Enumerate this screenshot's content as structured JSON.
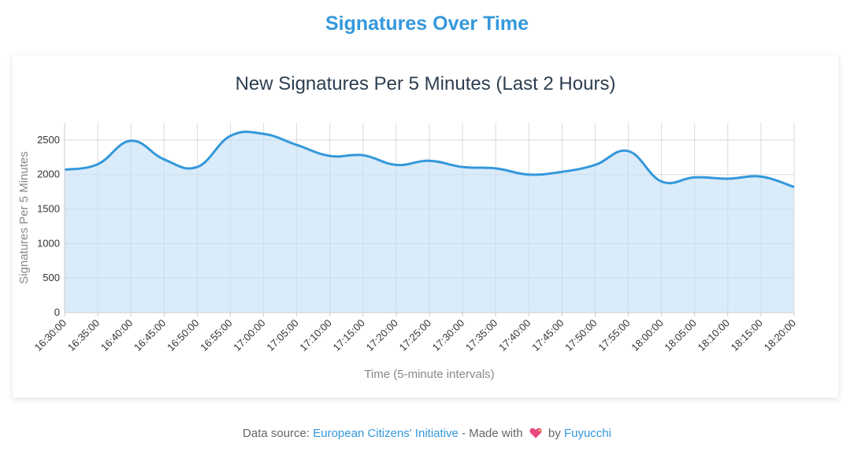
{
  "page": {
    "title": "Signatures Over Time"
  },
  "footer": {
    "prefix": "Data source:",
    "source_link": "European Citizens' Initiative",
    "middle": "- Made with",
    "heart_icon": "heart-icon",
    "by": "by",
    "author_link": "Fuyucchi"
  },
  "chart_data": {
    "type": "area",
    "title": "New Signatures Per 5 Minutes (Last 2 Hours)",
    "xlabel": "Time (5-minute intervals)",
    "ylabel": "Signatures Per 5 Minutes",
    "ylim": [
      0,
      2750
    ],
    "yticks": [
      0,
      500,
      1000,
      1500,
      2000,
      2500
    ],
    "grid": true,
    "line_color": "#3498db",
    "fill_color": "#d6e9f8",
    "categories": [
      "16:30:00",
      "16:35:00",
      "16:40:00",
      "16:45:00",
      "16:50:00",
      "16:55:00",
      "17:00:00",
      "17:05:00",
      "17:10:00",
      "17:15:00",
      "17:20:00",
      "17:25:00",
      "17:30:00",
      "17:35:00",
      "17:40:00",
      "17:45:00",
      "17:50:00",
      "17:55:00",
      "18:00:00",
      "18:05:00",
      "18:10:00",
      "18:15:00",
      "18:20:00"
    ],
    "values": [
      2070,
      2150,
      2490,
      2220,
      2110,
      2560,
      2590,
      2430,
      2270,
      2280,
      2140,
      2200,
      2110,
      2090,
      2000,
      2040,
      2140,
      2340,
      1900,
      1960,
      1940,
      1970,
      1820
    ]
  }
}
